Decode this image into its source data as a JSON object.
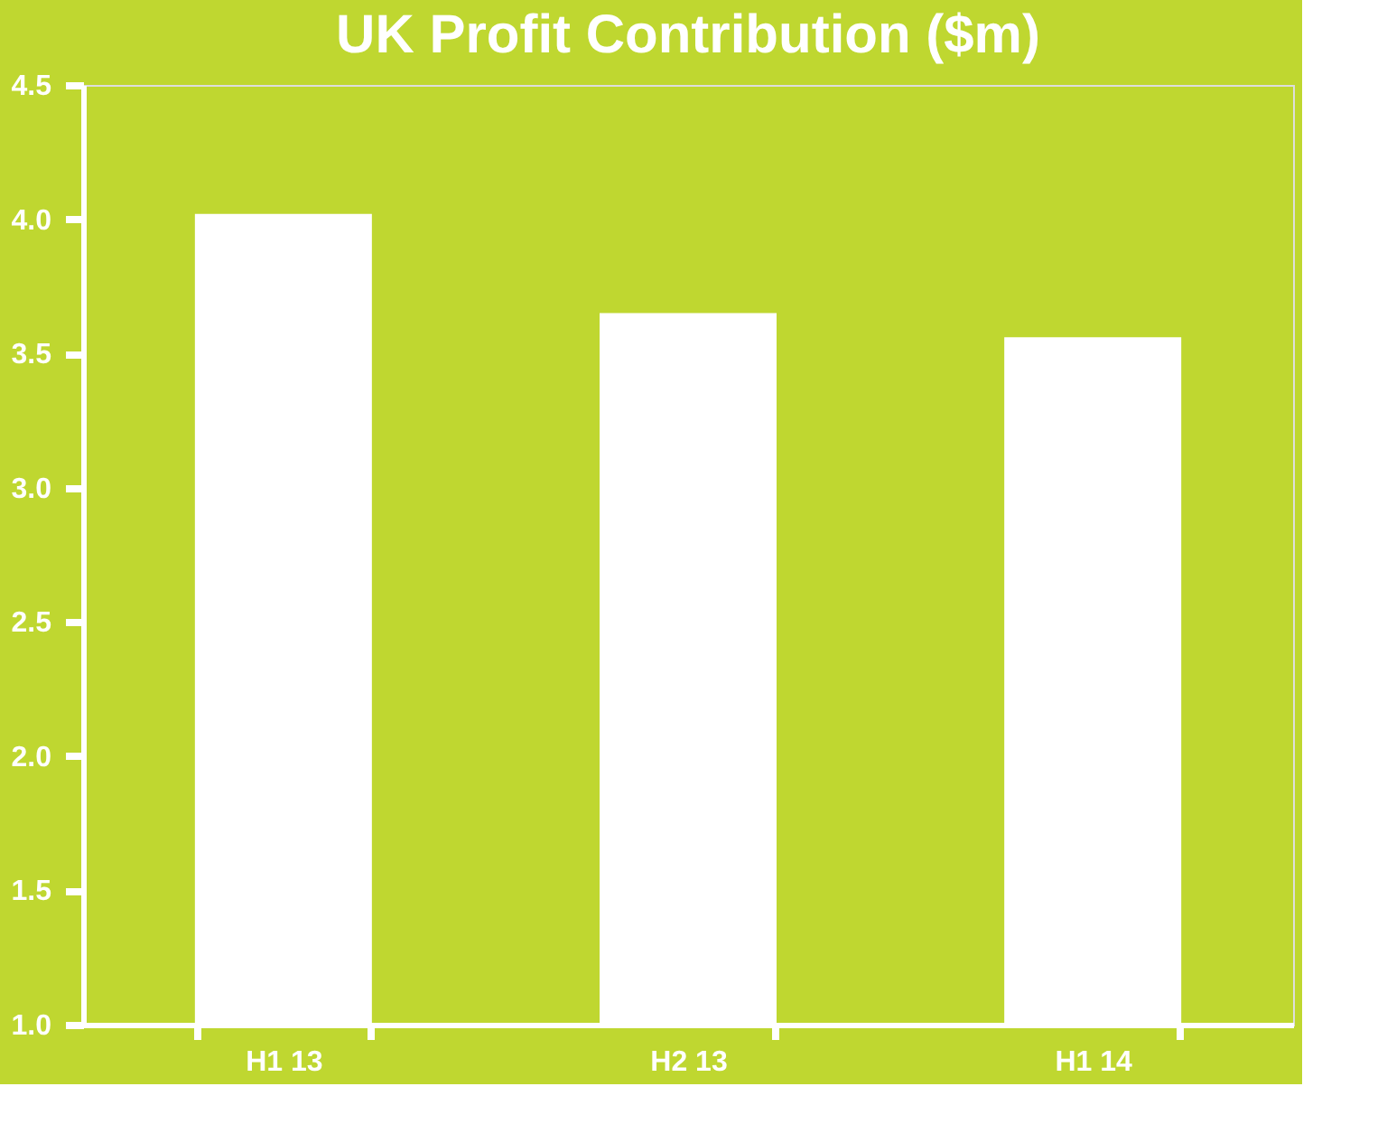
{
  "chart_data": {
    "type": "bar",
    "title": "UK Profit Contribution ($m)",
    "categories": [
      "H1 13",
      "H2 13",
      "H1 14"
    ],
    "series": [
      {
        "color": "#ffffff",
        "values": [
          4.02,
          3.65,
          3.56
        ]
      }
    ],
    "ylim": [
      1.0,
      4.5
    ],
    "yticks": [
      {
        "value": 1,
        "label": "1.0"
      },
      {
        "value": 1.5,
        "label": "1.5"
      },
      {
        "value": 2,
        "label": "2.0"
      },
      {
        "value": 2.5,
        "label": "2.5"
      },
      {
        "value": 3,
        "label": "3.0"
      },
      {
        "value": 3.5,
        "label": "3.5"
      },
      {
        "value": 4,
        "label": "4.0"
      },
      {
        "value": 4.5,
        "label": "4.5"
      }
    ],
    "grid": false,
    "legend": false
  }
}
